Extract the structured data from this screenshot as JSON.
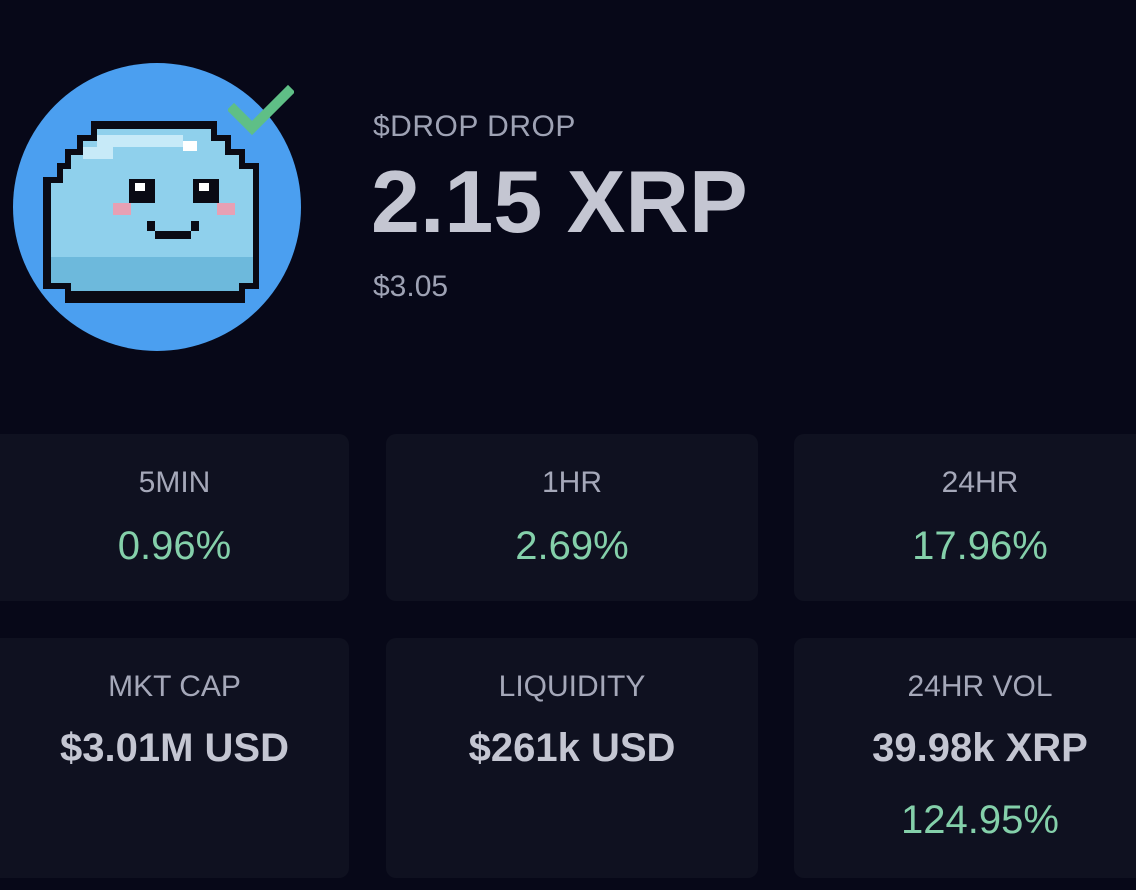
{
  "token": {
    "name": "$DROP DROP",
    "price_xrp": "2.15 XRP",
    "price_usd": "$3.05",
    "verified_icon": "check-icon",
    "avatar_icon": "pixel-slime-icon"
  },
  "changes": [
    {
      "label": "5MIN",
      "value": "0.96%"
    },
    {
      "label": "1HR",
      "value": "2.69%"
    },
    {
      "label": "24HR",
      "value": "17.96%"
    }
  ],
  "stats": {
    "market_cap": {
      "label": "MKT CAP",
      "value": "$3.01M USD"
    },
    "liquidity": {
      "label": "LIQUIDITY",
      "value": "$261k USD"
    },
    "volume": {
      "label": "24HR VOL",
      "value": "39.98k XRP",
      "change": "124.95%"
    }
  },
  "colors": {
    "background": "#070818",
    "card": "#0f1120",
    "positive": "#84d0aa",
    "avatar_bg": "#4b9ff0",
    "check": "#5fbf86"
  }
}
